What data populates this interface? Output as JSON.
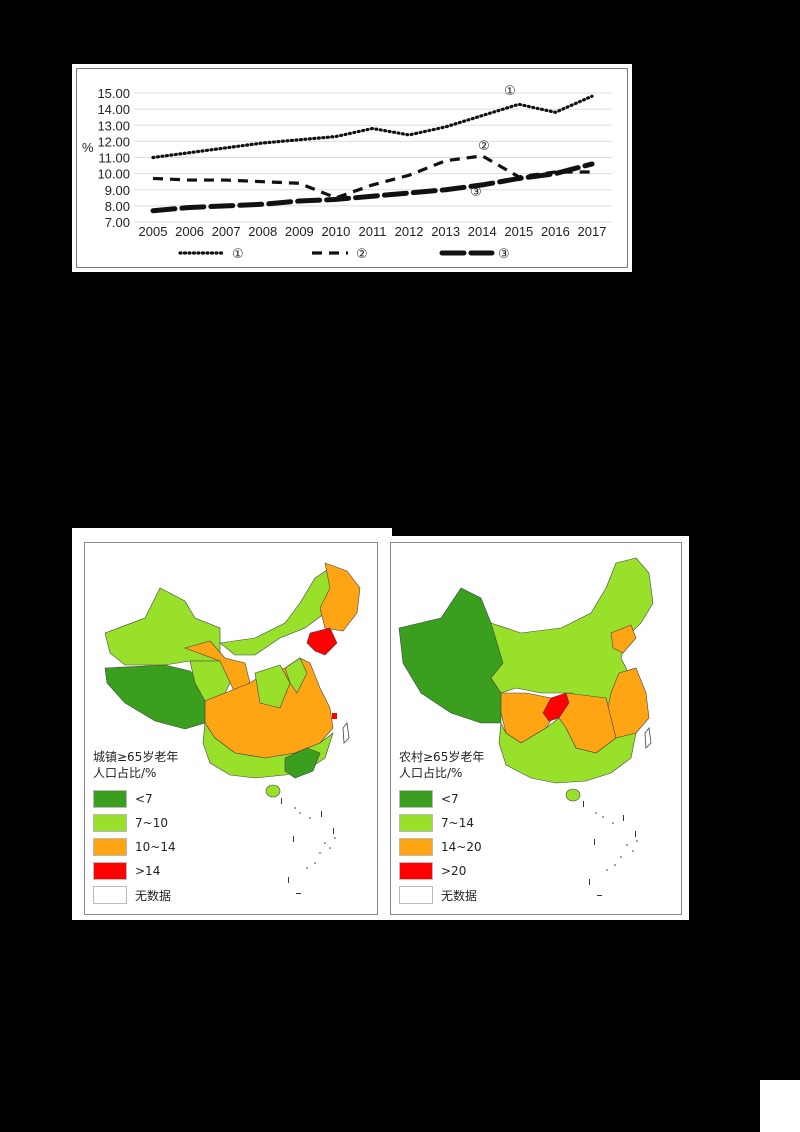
{
  "chart_data": {
    "type": "line",
    "title": "",
    "xlabel": "",
    "ylabel": "%",
    "ylim": [
      7,
      15
    ],
    "yticks": [
      "7.00",
      "8.00",
      "9.00",
      "10.00",
      "11.00",
      "12.00",
      "13.00",
      "14.00",
      "15.00"
    ],
    "categories": [
      "2005",
      "2006",
      "2007",
      "2008",
      "2009",
      "2010",
      "2011",
      "2012",
      "2013",
      "2014",
      "2015",
      "2016",
      "2017"
    ],
    "grid": true,
    "legend_position": "bottom",
    "series": [
      {
        "name": "①",
        "style": "dotted",
        "values": [
          11.0,
          11.3,
          11.6,
          11.9,
          12.1,
          12.3,
          12.8,
          12.4,
          12.9,
          13.6,
          14.3,
          13.8,
          14.8
        ]
      },
      {
        "name": "②",
        "style": "dashed",
        "values": [
          9.7,
          9.6,
          9.6,
          9.5,
          9.4,
          8.5,
          9.3,
          9.9,
          10.8,
          11.1,
          9.8,
          10.1,
          10.1
        ]
      },
      {
        "name": "③",
        "style": "long-dash-thick",
        "values": [
          7.7,
          7.9,
          8.0,
          8.1,
          8.3,
          8.4,
          8.6,
          8.8,
          9.0,
          9.3,
          9.7,
          10.0,
          10.6
        ]
      }
    ],
    "annotations": [
      "①",
      "②",
      "③"
    ]
  },
  "maps": {
    "left": {
      "title_line1": "城镇≥65岁老年",
      "title_line2": "人口占比/%",
      "legend": [
        {
          "label": "<7",
          "color": "#3a9e1e"
        },
        {
          "label": "7~10",
          "color": "#99e02a"
        },
        {
          "label": "10~14",
          "color": "#ffa514"
        },
        {
          "label": ">14",
          "color": "#ff0000"
        },
        {
          "label": "无数据",
          "color": "#ffffff"
        }
      ]
    },
    "right": {
      "title_line1": "农村≥65岁老年",
      "title_line2": "人口占比/%",
      "legend": [
        {
          "label": "<7",
          "color": "#3a9e1e"
        },
        {
          "label": "7~14",
          "color": "#99e02a"
        },
        {
          "label": "14~20",
          "color": "#ffa514"
        },
        {
          "label": ">20",
          "color": "#ff0000"
        },
        {
          "label": "无数据",
          "color": "#ffffff"
        }
      ]
    }
  }
}
